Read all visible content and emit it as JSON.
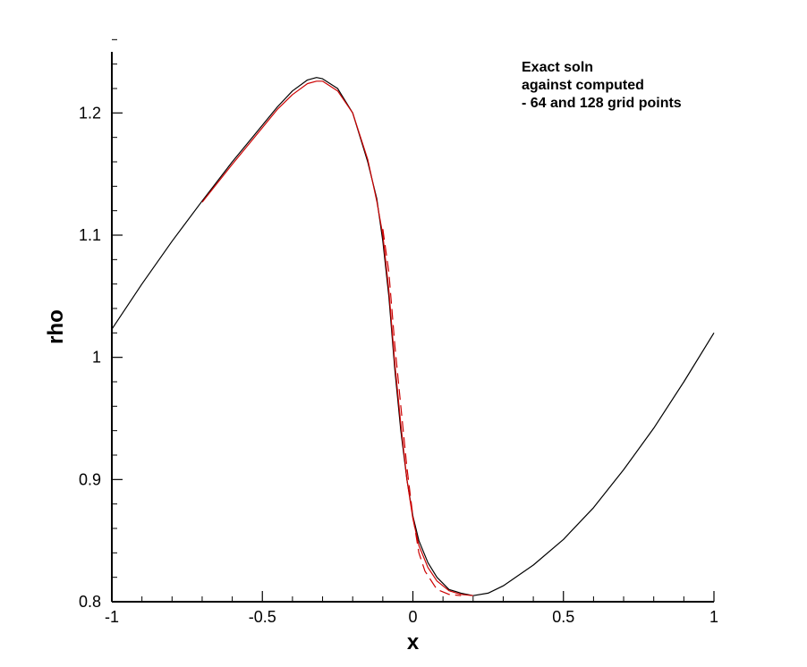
{
  "chart_data": {
    "type": "line",
    "xlabel": "x",
    "ylabel": "rho",
    "xlim": [
      -1,
      1
    ],
    "ylim": [
      0.8,
      1.25
    ],
    "x_ticks": [
      -1,
      -0.5,
      0,
      0.5,
      1
    ],
    "x_tick_labels": [
      "-1",
      "-0.5",
      "0",
      "0.5",
      "1"
    ],
    "y_ticks": [
      0.8,
      0.9,
      1.0,
      1.1,
      1.2
    ],
    "y_tick_labels": [
      "0.8",
      "0.9",
      "1",
      "1.1",
      "1.2"
    ],
    "x_minor_step": 0.1,
    "y_minor_step": 0.02,
    "grid": false,
    "annotation": [
      "Exact soln",
      "against computed",
      "- 64 and 128 grid points"
    ],
    "series": [
      {
        "color": "#000000",
        "style": "solid",
        "x": [
          -1.0,
          -0.9,
          -0.8,
          -0.7,
          -0.6,
          -0.5,
          -0.45,
          -0.4,
          -0.35,
          -0.32,
          -0.3,
          -0.25,
          -0.2,
          -0.15,
          -0.12,
          -0.1,
          -0.08,
          -0.06,
          -0.04,
          -0.02,
          0.0,
          0.02,
          0.05,
          0.08,
          0.12,
          0.16,
          0.2,
          0.25,
          0.3,
          0.4,
          0.5,
          0.6,
          0.7,
          0.8,
          0.9,
          1.0
        ],
        "y": [
          1.023,
          1.06,
          1.095,
          1.128,
          1.16,
          1.19,
          1.205,
          1.218,
          1.227,
          1.229,
          1.228,
          1.22,
          1.2,
          1.16,
          1.13,
          1.095,
          1.05,
          0.99,
          0.94,
          0.9,
          0.87,
          0.85,
          0.832,
          0.82,
          0.81,
          0.807,
          0.805,
          0.807,
          0.813,
          0.83,
          0.851,
          0.877,
          0.908,
          0.942,
          0.98,
          1.02
        ]
      },
      {
        "color": "#cc0000",
        "style": "solid",
        "x": [
          -0.7,
          -0.6,
          -0.5,
          -0.45,
          -0.4,
          -0.35,
          -0.32,
          -0.3,
          -0.25,
          -0.2,
          -0.15,
          -0.12,
          -0.1,
          -0.08,
          -0.06,
          -0.04,
          -0.02,
          0.0,
          0.02,
          0.05,
          0.08,
          0.12,
          0.16,
          0.2
        ],
        "y": [
          1.127,
          1.158,
          1.188,
          1.203,
          1.215,
          1.224,
          1.226,
          1.226,
          1.218,
          1.2,
          1.162,
          1.128,
          1.1,
          1.055,
          0.995,
          0.945,
          0.9,
          0.868,
          0.846,
          0.828,
          0.817,
          0.809,
          0.806,
          0.805
        ]
      },
      {
        "color": "#cc0000",
        "style": "dashed",
        "x": [
          -0.1,
          -0.08,
          -0.06,
          -0.04,
          -0.02,
          0.0,
          0.02,
          0.04,
          0.08,
          0.12,
          0.16
        ],
        "y": [
          1.105,
          1.07,
          1.01,
          0.96,
          0.91,
          0.87,
          0.84,
          0.825,
          0.81,
          0.806,
          0.805
        ]
      }
    ]
  }
}
